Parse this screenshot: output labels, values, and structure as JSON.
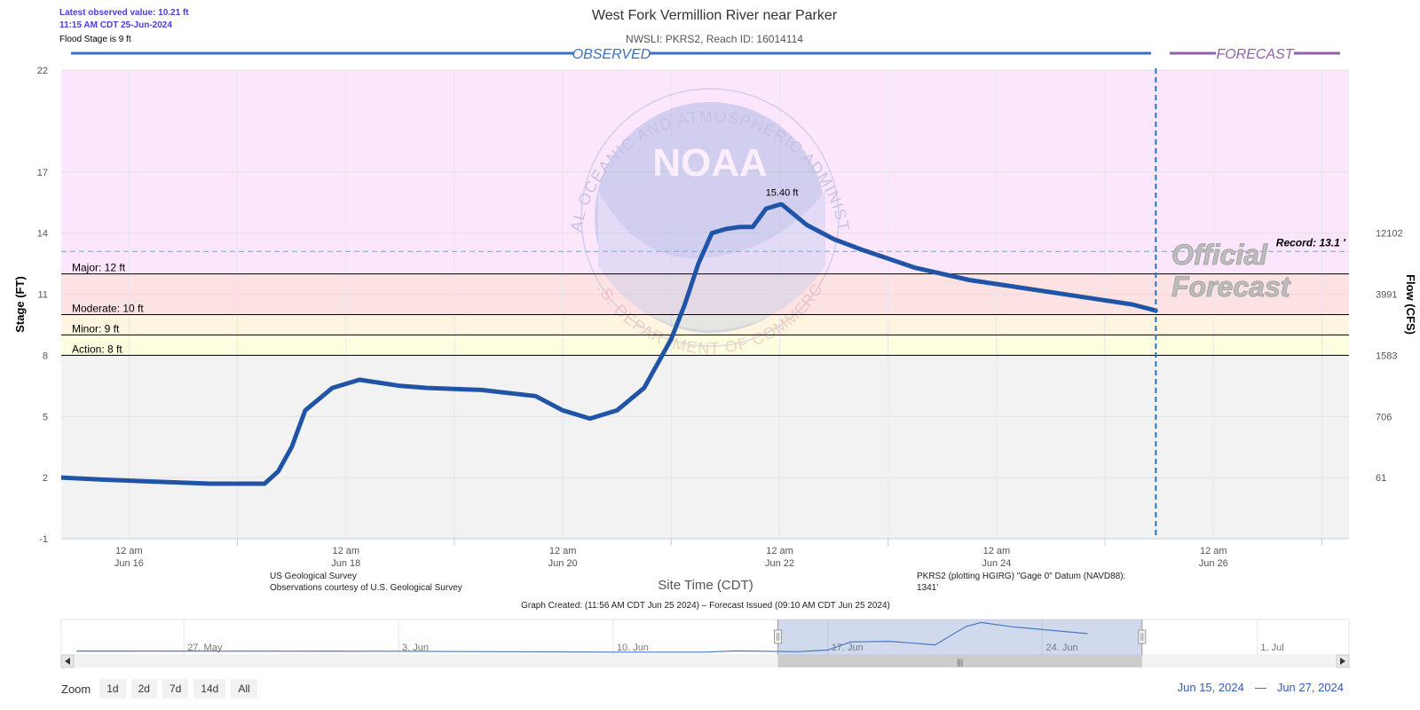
{
  "header": {
    "latest_value": "Latest observed value: 10.21 ft",
    "latest_time": "11:15 AM CDT 25-Jun-2024",
    "flood_stage": "Flood Stage is 9 ft",
    "title": "West Fork Vermillion River near Parker",
    "subtitle": "NWSLI: PKRS2, Reach ID: 16014114",
    "observed_label": "OBSERVED",
    "forecast_label": "FORECAST"
  },
  "watermark": {
    "logo_text": "NOAA",
    "ring_top": "NATIONAL OCEANIC AND ATMOSPHERIC ADMINISTRATION",
    "ring_bottom": "U.S. DEPARTMENT OF COMMERCE"
  },
  "official_forecast": [
    "Official",
    "Forecast"
  ],
  "footer": {
    "source_line1": "US Geological Survey",
    "source_line2": "Observations courtesy of U.S. Geological Survey",
    "datum_line1": "PKRS2 (plotting HGIRG) \"Gage 0\" Datum (NAVD88):",
    "datum_line2": "1341'",
    "graph_created": "Graph Created: (11:56 AM CDT Jun 25 2024) – Forecast Issued (09:10 AM CDT Jun 25 2024)"
  },
  "zoom": {
    "label": "Zoom",
    "buttons": [
      "1d",
      "2d",
      "7d",
      "14d",
      "All"
    ]
  },
  "range": {
    "from": "Jun 15, 2024",
    "sep": "—",
    "to": "Jun 27, 2024"
  },
  "colors": {
    "line": "#2155a8",
    "major": "#fbe6fb",
    "moderate": "#fde2e3",
    "minor": "#fdf5df",
    "action": "#fdfde0",
    "normal": "#f2f2f2",
    "record": "#62c1e4",
    "forecast_purple": "#8e63a8"
  },
  "chart_data": {
    "type": "line",
    "xlabel": "Site Time (CDT)",
    "ylabel": "Stage (FT)",
    "y2label": "Flow (CFS)",
    "ylim": [
      -1,
      22
    ],
    "xlim": [
      "2024-06-15 09:00",
      "2024-06-27 06:00"
    ],
    "y_ticks": [
      -1,
      2,
      5,
      8,
      11,
      14,
      17,
      22
    ],
    "y2_ticks": [
      {
        "stage": 2,
        "flow": "61"
      },
      {
        "stage": 5,
        "flow": "706"
      },
      {
        "stage": 8,
        "flow": "1583"
      },
      {
        "stage": 11,
        "flow": "3991"
      },
      {
        "stage": 14,
        "flow": "12102"
      }
    ],
    "x_ticks": [
      {
        "date": "2024-06-16 00:00",
        "line1": "12 am",
        "line2": "Jun 16"
      },
      {
        "date": "2024-06-18 00:00",
        "line1": "12 am",
        "line2": "Jun 18"
      },
      {
        "date": "2024-06-20 00:00",
        "line1": "12 am",
        "line2": "Jun 20"
      },
      {
        "date": "2024-06-22 00:00",
        "line1": "12 am",
        "line2": "Jun 22"
      },
      {
        "date": "2024-06-24 00:00",
        "line1": "12 am",
        "line2": "Jun 24"
      },
      {
        "date": "2024-06-26 00:00",
        "line1": "12 am",
        "line2": "Jun 26"
      }
    ],
    "flood_categories": [
      {
        "label": "Major: 12 ft",
        "value": 12
      },
      {
        "label": "Moderate: 10 ft",
        "value": 10
      },
      {
        "label": "Minor: 9 ft",
        "value": 9
      },
      {
        "label": "Action: 8 ft",
        "value": 8
      }
    ],
    "record": {
      "label": "Record: 13.1 '",
      "value": 13.1
    },
    "forecast_start": "2024-06-25 11:15",
    "peak": {
      "label": "15.40 ft",
      "date": "2024-06-22 00:30",
      "value": 15.4
    },
    "series": [
      {
        "x": [
          "2024-06-15 09:00",
          "2024-06-15 18:00",
          "2024-06-16 06:00",
          "2024-06-16 18:00",
          "2024-06-17 06:00",
          "2024-06-17 09:00",
          "2024-06-17 12:00",
          "2024-06-17 15:00",
          "2024-06-17 21:00",
          "2024-06-18 03:00",
          "2024-06-18 09:00",
          "2024-06-18 12:00",
          "2024-06-18 18:00",
          "2024-06-19 06:00",
          "2024-06-19 18:00",
          "2024-06-20 00:00",
          "2024-06-20 06:00",
          "2024-06-20 12:00",
          "2024-06-20 18:00",
          "2024-06-21 00:00",
          "2024-06-21 03:00",
          "2024-06-21 06:00",
          "2024-06-21 09:00",
          "2024-06-21 12:00",
          "2024-06-21 15:00",
          "2024-06-21 18:00",
          "2024-06-21 21:00",
          "2024-06-22 00:00",
          "2024-06-22 00:30",
          "2024-06-22 06:00",
          "2024-06-22 12:00",
          "2024-06-22 18:00",
          "2024-06-23 06:00",
          "2024-06-23 18:00",
          "2024-06-24 06:00",
          "2024-06-24 18:00",
          "2024-06-25 06:00",
          "2024-06-25 11:15"
        ],
        "values": [
          2.0,
          1.9,
          1.8,
          1.7,
          1.7,
          2.3,
          3.5,
          5.3,
          6.4,
          6.8,
          6.6,
          6.5,
          6.4,
          6.3,
          6.0,
          5.3,
          4.9,
          5.3,
          6.4,
          8.8,
          10.5,
          12.5,
          14.0,
          14.2,
          14.3,
          14.3,
          15.2,
          15.4,
          15.4,
          14.4,
          13.7,
          13.2,
          12.3,
          11.7,
          11.3,
          10.9,
          10.5,
          10.2
        ]
      }
    ]
  },
  "navigator": {
    "labels": [
      "27. May",
      "3. Jun",
      "10. Jun",
      "17. Jun",
      "24. Jun",
      "1. Jul"
    ],
    "xlim": [
      "2024-05-23 00:00",
      "2024-07-04 00:00"
    ],
    "label_dates": [
      "2024-05-27 00:00",
      "2024-06-03 00:00",
      "2024-06-10 00:00",
      "2024-06-17 00:00",
      "2024-06-24 00:00",
      "2024-07-01 00:00"
    ],
    "selected": [
      "2024-06-15 09:00",
      "2024-06-27 06:00"
    ],
    "x": [
      "2024-05-23 12:00",
      "2024-06-03 00:00",
      "2024-06-10 00:00",
      "2024-06-13 00:00",
      "2024-06-14 00:00",
      "2024-06-16 00:00",
      "2024-06-17 00:00",
      "2024-06-17 18:00",
      "2024-06-19 00:00",
      "2024-06-20 12:00",
      "2024-06-21 12:00",
      "2024-06-22 00:00",
      "2024-06-23 00:00",
      "2024-06-25 11:15"
    ],
    "values": [
      2.0,
      1.9,
      1.5,
      1.5,
      2.1,
      1.7,
      2.5,
      6.3,
      6.6,
      4.9,
      13.5,
      15.4,
      13.4,
      10.2
    ]
  }
}
